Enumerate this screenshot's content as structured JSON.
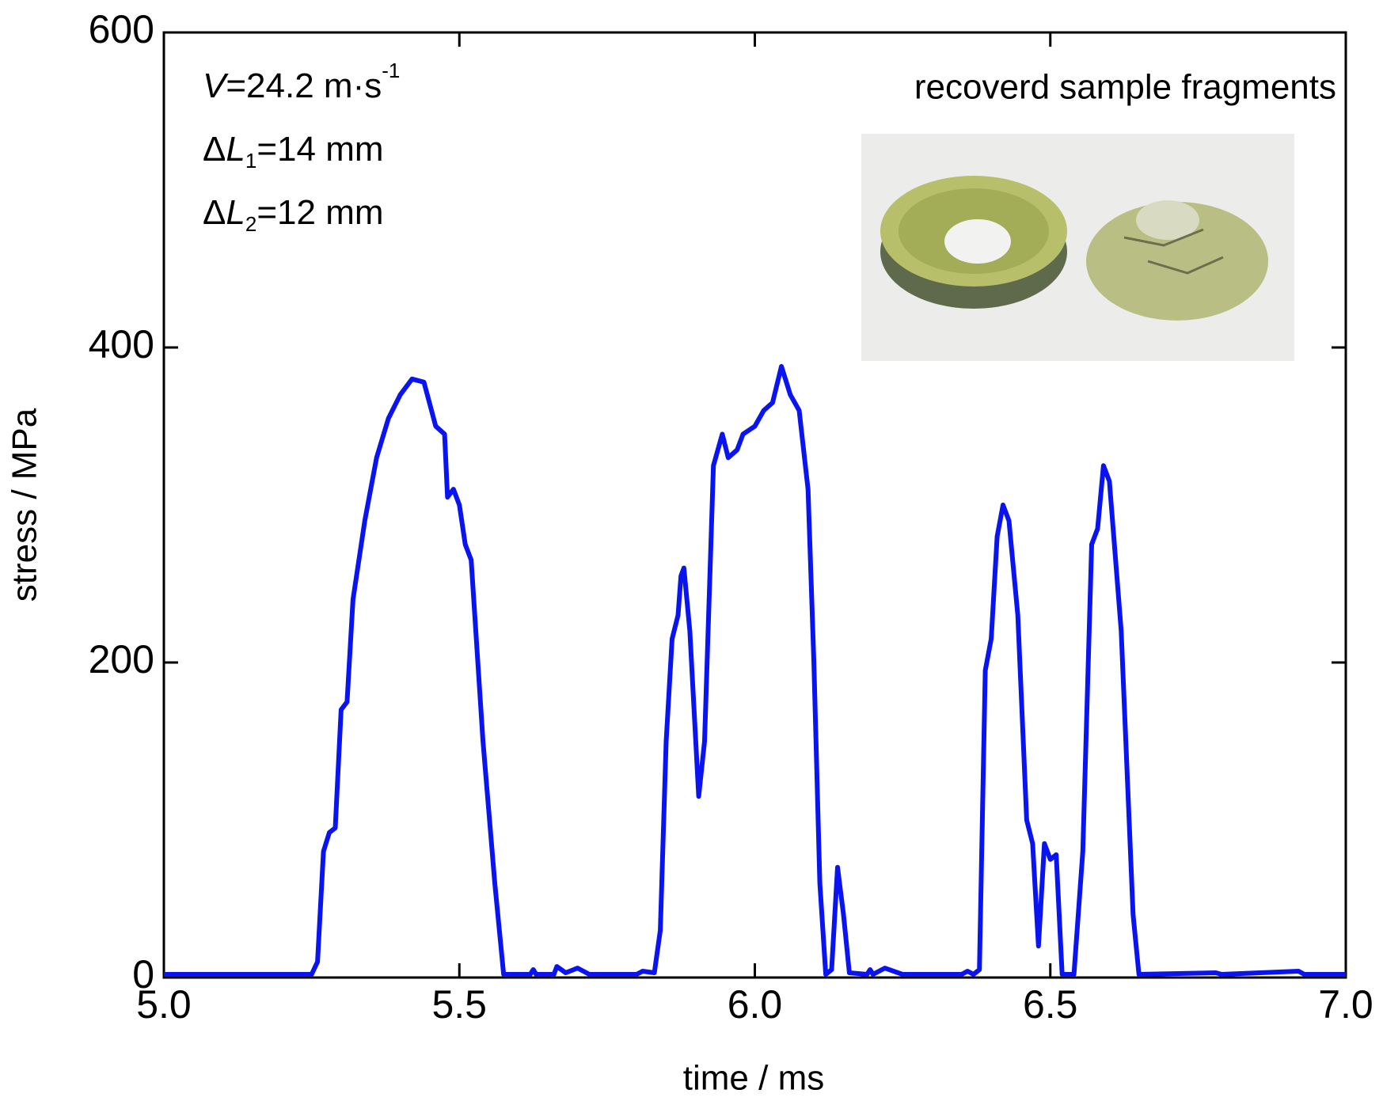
{
  "chart_data": {
    "type": "line",
    "xlabel": "time / ms",
    "ylabel": "stress / MPa",
    "xlim": [
      5.0,
      7.0
    ],
    "ylim": [
      0,
      600
    ],
    "xticks": [
      {
        "value": 5,
        "label": "5.0"
      },
      {
        "value": 5.5,
        "label": "5.5"
      },
      {
        "value": 6,
        "label": "6.0"
      },
      {
        "value": 6.5,
        "label": "6.5"
      },
      {
        "value": 7,
        "label": "7.0"
      }
    ],
    "yticks": [
      0,
      200,
      400,
      600
    ],
    "annotations": [
      {
        "italic": "V",
        "text": "=24.2 m·s",
        "sup": "-1"
      },
      {
        "prefix": "Δ",
        "italic": "L",
        "sub": "1",
        "text": "=14 mm"
      },
      {
        "prefix": "Δ",
        "italic": "L",
        "sub": "2",
        "text": "=12 mm"
      }
    ],
    "inset_caption": "recoverd sample fragments",
    "series": [
      {
        "color": "#0a14f0",
        "x": [
          5.0,
          5.25,
          5.26,
          5.27,
          5.28,
          5.29,
          5.3,
          5.31,
          5.32,
          5.34,
          5.36,
          5.38,
          5.4,
          5.42,
          5.44,
          5.46,
          5.475,
          5.48,
          5.49,
          5.5,
          5.51,
          5.52,
          5.54,
          5.56,
          5.575,
          5.62,
          5.625,
          5.63,
          5.66,
          5.665,
          5.68,
          5.7,
          5.72,
          5.8,
          5.81,
          5.83,
          5.84,
          5.85,
          5.86,
          5.87,
          5.875,
          5.88,
          5.89,
          5.905,
          5.915,
          5.93,
          5.945,
          5.955,
          5.97,
          5.98,
          6.0,
          6.015,
          6.03,
          6.045,
          6.06,
          6.075,
          6.09,
          6.1,
          6.11,
          6.12,
          6.13,
          6.14,
          6.15,
          6.16,
          6.19,
          6.195,
          6.2,
          6.22,
          6.25,
          6.35,
          6.36,
          6.37,
          6.38,
          6.385,
          6.39,
          6.4,
          6.41,
          6.42,
          6.43,
          6.445,
          6.46,
          6.47,
          6.48,
          6.49,
          6.5,
          6.51,
          6.52,
          6.54,
          6.555,
          6.57,
          6.58,
          6.59,
          6.6,
          6.62,
          6.64,
          6.65,
          6.78,
          6.79,
          6.92,
          6.93,
          7.0
        ],
        "values": [
          2,
          2,
          10,
          80,
          92,
          95,
          170,
          175,
          240,
          290,
          330,
          355,
          370,
          380,
          378,
          350,
          345,
          305,
          310,
          300,
          275,
          265,
          150,
          60,
          2,
          2,
          5,
          2,
          2,
          7,
          3,
          6,
          2,
          2,
          4,
          3,
          30,
          150,
          215,
          230,
          255,
          260,
          220,
          115,
          150,
          325,
          345,
          330,
          335,
          345,
          350,
          360,
          365,
          388,
          370,
          360,
          310,
          200,
          60,
          2,
          5,
          70,
          40,
          3,
          2,
          5,
          2,
          6,
          2,
          2,
          4,
          2,
          5,
          100,
          195,
          215,
          280,
          300,
          290,
          230,
          100,
          85,
          20,
          85,
          75,
          78,
          2,
          2,
          80,
          275,
          285,
          325,
          315,
          220,
          40,
          2,
          3,
          2,
          4,
          2,
          2
        ]
      }
    ]
  }
}
